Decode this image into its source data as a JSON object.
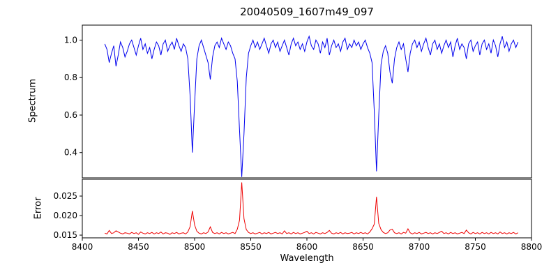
{
  "chart_data": {
    "type": "line",
    "title": "20040509_1607m49_097",
    "xlabel": "Wavelength",
    "xlim": [
      8400,
      8800
    ],
    "xticks": [
      8400,
      8450,
      8500,
      8550,
      8600,
      8650,
      8700,
      8750,
      8800
    ],
    "grid": false,
    "legend": "none",
    "x": [
      8420,
      8422,
      8424,
      8426,
      8428,
      8430,
      8432,
      8434,
      8436,
      8438,
      8440,
      8442,
      8444,
      8446,
      8448,
      8450,
      8452,
      8454,
      8456,
      8458,
      8460,
      8462,
      8464,
      8466,
      8468,
      8470,
      8472,
      8474,
      8476,
      8478,
      8480,
      8482,
      8484,
      8486,
      8488,
      8490,
      8492,
      8494,
      8496,
      8498,
      8500,
      8502,
      8504,
      8506,
      8508,
      8510,
      8512,
      8514,
      8516,
      8518,
      8520,
      8522,
      8524,
      8526,
      8528,
      8530,
      8532,
      8534,
      8536,
      8538,
      8540,
      8542,
      8544,
      8546,
      8548,
      8550,
      8552,
      8554,
      8556,
      8558,
      8560,
      8562,
      8564,
      8566,
      8568,
      8570,
      8572,
      8574,
      8576,
      8578,
      8580,
      8582,
      8584,
      8586,
      8588,
      8590,
      8592,
      8594,
      8596,
      8598,
      8600,
      8602,
      8604,
      8606,
      8608,
      8610,
      8612,
      8614,
      8616,
      8618,
      8620,
      8622,
      8624,
      8626,
      8628,
      8630,
      8632,
      8634,
      8636,
      8638,
      8640,
      8642,
      8644,
      8646,
      8648,
      8650,
      8652,
      8654,
      8656,
      8658,
      8660,
      8662,
      8664,
      8666,
      8668,
      8670,
      8672,
      8674,
      8676,
      8678,
      8680,
      8682,
      8684,
      8686,
      8688,
      8690,
      8692,
      8694,
      8696,
      8698,
      8700,
      8702,
      8704,
      8706,
      8708,
      8710,
      8712,
      8714,
      8716,
      8718,
      8720,
      8722,
      8724,
      8726,
      8728,
      8730,
      8732,
      8734,
      8736,
      8738,
      8740,
      8742,
      8744,
      8746,
      8748,
      8750,
      8752,
      8754,
      8756,
      8758,
      8760,
      8762,
      8764,
      8766,
      8768,
      8770,
      8772,
      8774,
      8776,
      8778,
      8780,
      8782,
      8784,
      8786,
      8788
    ],
    "panels": [
      {
        "name": "spectrum",
        "ylabel": "Spectrum",
        "ylim": [
          0.265,
          1.08
        ],
        "yticks": [
          0.4,
          0.6,
          0.8,
          1.0
        ],
        "ytick_labels": [
          "0.4",
          "0.6",
          "0.8",
          "1.0"
        ],
        "color": "#0000ee",
        "values": [
          0.98,
          0.95,
          0.88,
          0.93,
          0.97,
          0.86,
          0.92,
          0.99,
          0.96,
          0.91,
          0.94,
          0.98,
          1.0,
          0.96,
          0.92,
          0.97,
          1.01,
          0.95,
          0.98,
          0.93,
          0.96,
          0.9,
          0.95,
          0.99,
          0.97,
          0.92,
          0.98,
          1.0,
          0.94,
          0.97,
          0.99,
          0.95,
          1.01,
          0.97,
          0.94,
          0.98,
          0.96,
          0.9,
          0.7,
          0.4,
          0.66,
          0.9,
          0.97,
          1.0,
          0.96,
          0.92,
          0.88,
          0.79,
          0.91,
          0.97,
          0.99,
          0.96,
          1.01,
          0.98,
          0.95,
          0.99,
          0.97,
          0.93,
          0.9,
          0.78,
          0.52,
          0.27,
          0.5,
          0.8,
          0.93,
          0.97,
          1.0,
          0.96,
          0.99,
          0.95,
          0.98,
          1.01,
          0.97,
          0.93,
          0.98,
          1.0,
          0.96,
          0.99,
          0.94,
          0.97,
          1.0,
          0.96,
          0.92,
          0.98,
          1.01,
          0.97,
          0.99,
          0.95,
          0.98,
          0.94,
          0.99,
          1.02,
          0.97,
          0.95,
          1.0,
          0.98,
          0.93,
          0.99,
          0.96,
          1.01,
          0.92,
          0.97,
          1.0,
          0.96,
          0.98,
          0.94,
          0.99,
          1.01,
          0.95,
          0.98,
          0.96,
          1.0,
          0.97,
          0.99,
          0.95,
          0.98,
          1.0,
          0.96,
          0.93,
          0.88,
          0.62,
          0.3,
          0.6,
          0.87,
          0.94,
          0.97,
          0.93,
          0.83,
          0.77,
          0.9,
          0.96,
          0.99,
          0.95,
          0.98,
          0.9,
          0.83,
          0.93,
          0.98,
          1.0,
          0.96,
          0.99,
          0.94,
          0.98,
          1.01,
          0.96,
          0.92,
          0.98,
          1.0,
          0.95,
          0.98,
          0.93,
          0.97,
          1.0,
          0.96,
          0.99,
          0.91,
          0.97,
          1.01,
          0.95,
          0.98,
          0.96,
          0.9,
          0.98,
          1.0,
          0.94,
          0.97,
          0.99,
          0.92,
          0.98,
          1.0,
          0.95,
          0.98,
          0.93,
          1.0,
          0.97,
          0.91,
          0.98,
          1.02,
          0.96,
          0.99,
          0.94,
          0.98,
          1.0,
          0.96,
          0.99
        ]
      },
      {
        "name": "error",
        "ylabel": "Error",
        "ylim": [
          0.0143,
          0.0293
        ],
        "yticks": [
          0.015,
          0.02,
          0.025
        ],
        "ytick_labels": [
          "0.015",
          "0.020",
          "0.025"
        ],
        "color": "#ee0000",
        "values": [
          0.0155,
          0.0153,
          0.0162,
          0.0154,
          0.0156,
          0.0161,
          0.0158,
          0.0155,
          0.0153,
          0.0156,
          0.0155,
          0.0153,
          0.0157,
          0.0154,
          0.0156,
          0.0152,
          0.0158,
          0.0155,
          0.0153,
          0.0156,
          0.0154,
          0.0157,
          0.0153,
          0.0156,
          0.0154,
          0.0158,
          0.0153,
          0.0156,
          0.0155,
          0.0152,
          0.0156,
          0.0154,
          0.0157,
          0.0153,
          0.0155,
          0.0156,
          0.0153,
          0.0158,
          0.0172,
          0.0212,
          0.0176,
          0.016,
          0.0155,
          0.0153,
          0.0156,
          0.0154,
          0.0158,
          0.0171,
          0.0157,
          0.0154,
          0.0156,
          0.0153,
          0.0157,
          0.0154,
          0.0156,
          0.0153,
          0.0155,
          0.0157,
          0.0154,
          0.0165,
          0.0188,
          0.0285,
          0.0192,
          0.0164,
          0.0157,
          0.0154,
          0.0156,
          0.0153,
          0.0155,
          0.0157,
          0.0153,
          0.0156,
          0.0154,
          0.0157,
          0.0153,
          0.0155,
          0.0157,
          0.0154,
          0.0156,
          0.0153,
          0.0161,
          0.0154,
          0.0156,
          0.0153,
          0.0157,
          0.0154,
          0.0156,
          0.0153,
          0.0155,
          0.0157,
          0.016,
          0.0154,
          0.0156,
          0.0153,
          0.0157,
          0.0155,
          0.0153,
          0.0156,
          0.0154,
          0.0157,
          0.0162,
          0.0155,
          0.0153,
          0.0156,
          0.0154,
          0.0157,
          0.0153,
          0.0156,
          0.0154,
          0.0155,
          0.0157,
          0.0153,
          0.0156,
          0.0154,
          0.0157,
          0.0154,
          0.0156,
          0.0153,
          0.0158,
          0.0166,
          0.0178,
          0.0248,
          0.018,
          0.0164,
          0.0157,
          0.0154,
          0.0156,
          0.0163,
          0.0165,
          0.0156,
          0.0154,
          0.0156,
          0.0153,
          0.0157,
          0.0155,
          0.0166,
          0.0156,
          0.0153,
          0.0156,
          0.0154,
          0.0157,
          0.0153,
          0.0155,
          0.0157,
          0.0154,
          0.0156,
          0.0153,
          0.0156,
          0.0154,
          0.0157,
          0.016,
          0.0154,
          0.0156,
          0.0153,
          0.0157,
          0.0154,
          0.0156,
          0.0153,
          0.0155,
          0.0157,
          0.0154,
          0.0163,
          0.0156,
          0.0153,
          0.0157,
          0.0154,
          0.0156,
          0.0153,
          0.0157,
          0.0154,
          0.0156,
          0.0153,
          0.0157,
          0.0154,
          0.0156,
          0.0153,
          0.0158,
          0.0154,
          0.0156,
          0.0153,
          0.0156,
          0.0154,
          0.0157,
          0.0153,
          0.0156
        ]
      }
    ]
  }
}
